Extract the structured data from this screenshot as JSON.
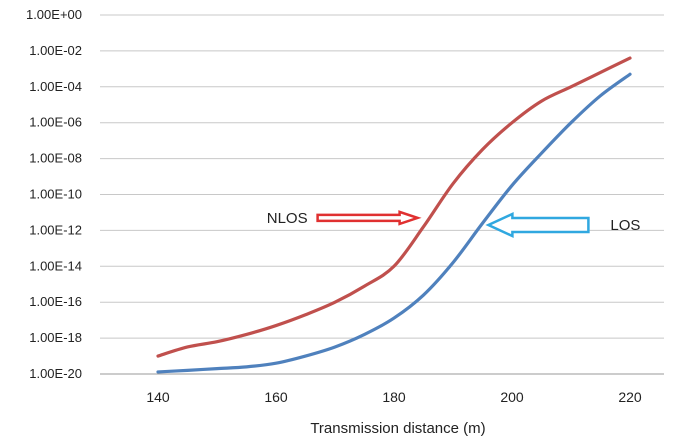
{
  "chart_data": {
    "type": "line",
    "title": "",
    "xlabel": "Transmission distance (m)",
    "ylabel": "",
    "yscale": "log",
    "grid": "horizontal",
    "legend": "none",
    "xlim": [
      140,
      220
    ],
    "ylim_exponent": [
      -20,
      0
    ],
    "x_ticks": [
      {
        "value": 140,
        "label": "140"
      },
      {
        "value": 160,
        "label": "160"
      },
      {
        "value": 180,
        "label": "180"
      },
      {
        "value": 200,
        "label": "200"
      },
      {
        "value": 220,
        "label": "220"
      }
    ],
    "y_ticks": [
      {
        "exp": 0,
        "label": "1.00E+00"
      },
      {
        "exp": -2,
        "label": "1.00E-02"
      },
      {
        "exp": -4,
        "label": "1.00E-04"
      },
      {
        "exp": -6,
        "label": "1.00E-06"
      },
      {
        "exp": -8,
        "label": "1.00E-08"
      },
      {
        "exp": -10,
        "label": "1.00E-10"
      },
      {
        "exp": -12,
        "label": "1.00E-12"
      },
      {
        "exp": -14,
        "label": "1.00E-14"
      },
      {
        "exp": -16,
        "label": "1.00E-16"
      },
      {
        "exp": -18,
        "label": "1.00E-18"
      },
      {
        "exp": -20,
        "label": "1.00E-20"
      }
    ],
    "series": [
      {
        "name": "NLOS",
        "color": "#c0504d",
        "x": [
          140,
          145,
          150,
          155,
          160,
          165,
          170,
          175,
          180,
          185,
          190,
          195,
          200,
          205,
          210,
          215,
          220
        ],
        "y": [
          1e-19,
          3.2e-19,
          6.3e-19,
          1.6e-18,
          5e-18,
          2e-17,
          1e-16,
          7.9e-16,
          1e-14,
          1.6e-12,
          4e-10,
          3.2e-08,
          1e-06,
          1.6e-05,
          0.0001,
          0.00063,
          0.004
        ]
      },
      {
        "name": "LOS",
        "color": "#4f81bd",
        "x": [
          140,
          145,
          150,
          155,
          160,
          165,
          170,
          175,
          180,
          185,
          190,
          195,
          200,
          205,
          210,
          215,
          220
        ],
        "y": [
          1.3e-20,
          1.6e-20,
          2e-20,
          2.5e-20,
          4e-20,
          1e-19,
          3.2e-19,
          1.6e-18,
          1.3e-17,
          2.5e-16,
          1.6e-14,
          2.5e-12,
          3.2e-10,
          2e-08,
          1e-06,
          3.2e-05,
          0.0005
        ]
      }
    ],
    "annotations": [
      {
        "text": "NLOS",
        "color": "#e03030",
        "arrow": "right",
        "x": 184,
        "y": 5e-12
      },
      {
        "text": "LOS",
        "color": "#30a8e0",
        "arrow": "left",
        "x": 196,
        "y": 2e-12
      }
    ]
  }
}
